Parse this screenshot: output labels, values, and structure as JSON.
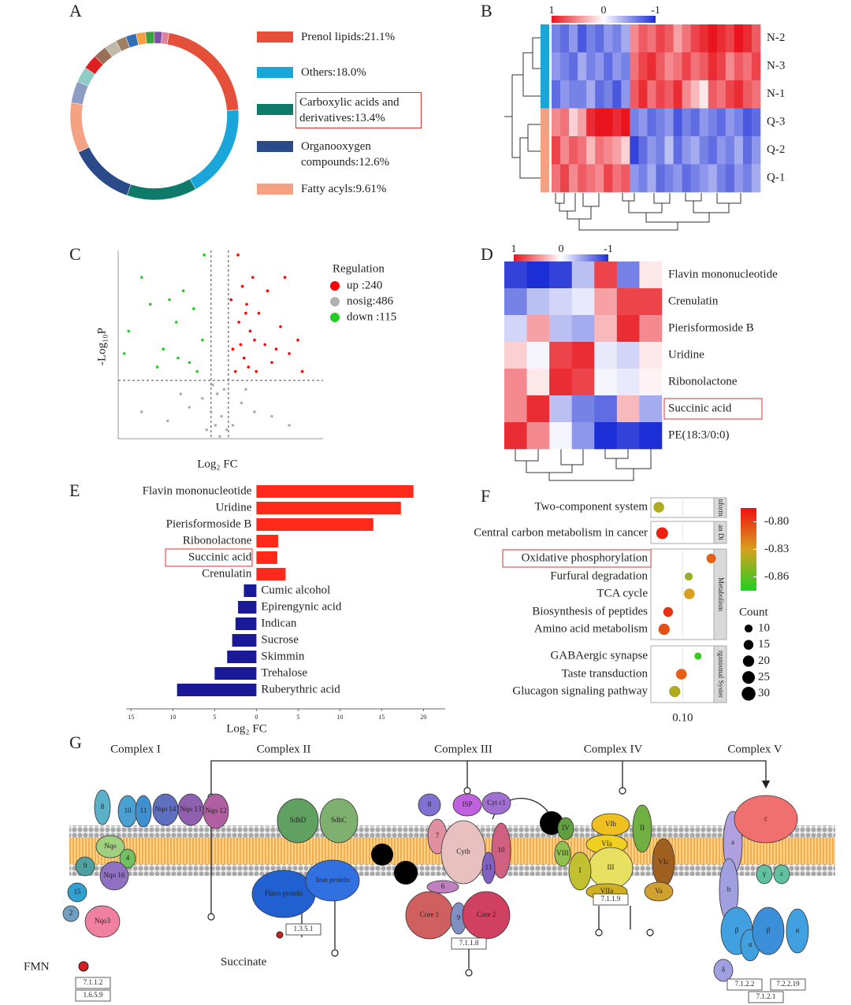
{
  "panels": [
    "A",
    "B",
    "C",
    "D",
    "E",
    "F",
    "G"
  ],
  "chart_data": [
    {
      "type": "donut",
      "categories": [
        "Prenol lipids:21.1%",
        "Others:18.0%",
        "Carboxylic acids and derivatives:13.4%",
        "Organooxygen compounds:12.6%",
        "Fatty acyls:9.61%",
        null,
        null,
        null,
        null,
        null,
        null,
        null,
        null,
        null,
        null,
        null
      ],
      "values": [
        21.1,
        18.0,
        13.4,
        12.6,
        9.61,
        4.2,
        3.0,
        2.8,
        2.6,
        2.4,
        2.0,
        2.0,
        1.8,
        1.7,
        1.5,
        1.3
      ],
      "colors": [
        "#e4503a",
        "#1aa6d8",
        "#0e7a6a",
        "#2b4a8a",
        "#f4a184",
        "#8e9cc4",
        "#8ecdc5",
        "#e02020",
        "#9a7058",
        "#c0b8a8",
        "#a08060",
        "#2f6fb6",
        "#f5a040",
        "#3aa040",
        "#8050a0",
        "#e080a0"
      ],
      "highlight_index": 2
    },
    {
      "type": "heatmap",
      "rows": [
        "N-2",
        "N-3",
        "N-1",
        "Q-3",
        "Q-2",
        "Q-1"
      ],
      "row_colors": [
        "#1aa6d8",
        "#1aa6d8",
        "#1aa6d8",
        "#f4a184",
        "#f4a184",
        "#f4a184"
      ],
      "clim": [
        -1,
        1
      ],
      "colorbar_ticks": [
        1,
        0,
        -1
      ],
      "values": [
        [
          -0.6,
          -0.7,
          -0.5,
          -0.8,
          -0.6,
          -0.7,
          -0.5,
          -0.6,
          -0.4,
          0.5,
          0.7,
          0.6,
          0.8,
          0.7,
          0.4,
          0.6,
          0.8,
          0.9,
          1.0,
          0.9,
          0.8,
          1.0,
          0.9,
          0.7
        ],
        [
          -0.5,
          -0.6,
          -0.7,
          -0.4,
          -0.6,
          -0.5,
          -0.7,
          -0.5,
          -0.6,
          0.6,
          0.8,
          0.9,
          0.7,
          0.5,
          0.6,
          0.8,
          0.6,
          0.7,
          0.9,
          0.8,
          0.5,
          0.7,
          0.6,
          0.8
        ],
        [
          -0.7,
          -0.5,
          -0.6,
          -0.6,
          -0.4,
          -0.7,
          -0.6,
          -0.8,
          -0.5,
          0.7,
          0.9,
          0.6,
          0.8,
          0.7,
          0.9,
          0.5,
          0.3,
          0.1,
          0.7,
          0.6,
          0.8,
          0.9,
          0.7,
          0.6
        ],
        [
          0.5,
          0.6,
          0.2,
          0.4,
          0.9,
          1.0,
          1.0,
          0.9,
          1.0,
          -0.6,
          -0.5,
          -0.7,
          -0.6,
          -0.5,
          -0.8,
          -0.6,
          -0.7,
          -0.5,
          -0.6,
          -0.7,
          -0.5,
          -0.6,
          -0.8,
          -0.7
        ],
        [
          0.8,
          0.5,
          0.7,
          0.6,
          0.3,
          0.6,
          0.5,
          0.4,
          0.2,
          -0.9,
          -0.7,
          -0.5,
          -0.6,
          -0.3,
          -0.7,
          -0.5,
          -0.4,
          -0.6,
          -0.7,
          -0.5,
          -0.6,
          -0.4,
          -0.7,
          -0.5
        ],
        [
          0.6,
          0.8,
          0.5,
          0.7,
          0.6,
          0.5,
          0.8,
          0.6,
          0.7,
          -0.5,
          -0.6,
          -0.4,
          -0.7,
          -0.6,
          -0.5,
          -0.7,
          -0.6,
          -0.5,
          -0.4,
          -0.6,
          -0.7,
          -0.5,
          -0.6,
          -0.4
        ]
      ]
    },
    {
      "type": "scatter",
      "xlabel": "Log₂ FC",
      "ylabel": "-Log₁₀P",
      "legend_title": "Regulation",
      "xlim": [
        -11.7,
        11.9
      ],
      "ylim": [
        0,
        4.2
      ],
      "vlines": [
        -1,
        1
      ],
      "hline": 1.3,
      "series": [
        {
          "name": "up :240",
          "color": "#ff0000",
          "x": [
            1.5,
            2.2,
            2.8,
            3.1,
            3.5,
            4.0,
            3.3,
            2.6,
            4.5,
            5.2,
            6.0,
            5.5,
            7.0,
            8.0,
            9.0,
            1.8,
            3.8,
            2.1,
            6.5,
            4.2,
            1.3,
            7.5,
            9.5,
            3.0,
            2.4
          ],
          "values": [
            2.0,
            2.6,
            1.8,
            3.0,
            2.4,
            2.2,
            1.6,
            3.4,
            2.8,
            2.1,
            1.7,
            3.3,
            2.5,
            1.9,
            2.2,
            1.5,
            3.6,
            4.1,
            2.0,
            1.5,
            3.1,
            3.6,
            1.5,
            2.8,
            2.1
          ]
        },
        {
          "name": "nosig:486",
          "color": "#b0b0b0",
          "x": [
            -1,
            -0.5,
            0.2,
            0.8,
            -2,
            -3.5,
            2.5,
            4,
            -0.3,
            0.5,
            -6,
            6,
            1.5,
            -1.5,
            3,
            -4.5,
            8,
            -9,
            0.0,
            -0.8
          ],
          "values": [
            0.6,
            0.3,
            0.5,
            0.2,
            0.9,
            0.7,
            0.8,
            0.6,
            1.0,
            1.1,
            0.4,
            0.5,
            0.3,
            0.2,
            1.1,
            1.0,
            0.3,
            0.6,
            0.05,
            1.2
          ]
        },
        {
          "name": "down :115",
          "color": "#22cc22",
          "x": [
            -2,
            -3.5,
            -5,
            -6.5,
            -8,
            -10.5,
            -4.2,
            -3,
            -7.2,
            -2.6,
            -9,
            -5.8,
            -1.8,
            -11,
            -4.8
          ],
          "values": [
            2.2,
            1.7,
            2.6,
            2.0,
            3.0,
            2.4,
            3.3,
            2.9,
            1.6,
            1.5,
            3.6,
            3.1,
            4.1,
            1.9,
            1.8
          ]
        }
      ]
    },
    {
      "type": "heatmap",
      "rows": [
        "Flavin mononucleotide",
        "Crenulatin",
        "Pierisformoside B",
        "Uridine",
        "Ribonolactone",
        "Succinic acid",
        "PE(18:3/0:0)"
      ],
      "clim": [
        -1,
        1
      ],
      "colorbar_ticks": [
        1,
        0,
        -1
      ],
      "highlight_index": 5,
      "values": [
        [
          -0.9,
          -1,
          -0.9,
          -0.3,
          0.8,
          -0.6,
          0.1
        ],
        [
          -0.6,
          -0.3,
          -0.2,
          -0.1,
          0.4,
          0.8,
          0.8
        ],
        [
          -0.2,
          0.4,
          -0.3,
          -0.4,
          0.3,
          0.9,
          0.5
        ],
        [
          0.2,
          -0.05,
          0.8,
          0.9,
          -0.1,
          -0.2,
          0.1
        ],
        [
          0.5,
          0.1,
          0.9,
          0.8,
          -0.05,
          -0.1,
          0.05
        ],
        [
          0.5,
          0.9,
          -0.3,
          -0.6,
          -0.7,
          0.3,
          -0.4
        ],
        [
          0.9,
          0.5,
          -0.05,
          -0.5,
          -1,
          -0.9,
          -1
        ]
      ]
    },
    {
      "type": "barh",
      "categories": [
        "Flavin mononucleotide",
        "Uridine",
        "Pierisformoside B",
        "Ribonolactone",
        "Succinic acid",
        "Crenulatin",
        "Cumic alcohol",
        "Epirengynic acid",
        "Indican",
        "Sucrose",
        "Skimmin",
        "Trehalose",
        "Ruberythric acid"
      ],
      "values": [
        18.8,
        17.3,
        14,
        2.6,
        2.5,
        3.5,
        -1.5,
        -2.2,
        -2.5,
        -2.9,
        -3.5,
        -5,
        -9.5
      ],
      "pos_color": "#ff2a1a",
      "neg_color": "#1a1a99",
      "highlight_index": 4,
      "xlabel": "Log₂ FC",
      "xlim": [
        -15.6,
        22.6
      ],
      "xticks": [
        {
          "value": -15,
          "label": "15"
        },
        {
          "value": -10,
          "label": "10"
        },
        {
          "value": -5,
          "label": "5"
        },
        0,
        5,
        10,
        15,
        20
      ]
    },
    {
      "type": "dot",
      "categories": [
        "Two-component system",
        "Central carbon metabolism in cancer",
        "Oxidative phosphorylation",
        "Furfural degradation",
        "TCA cycle",
        "Biosynthesis of peptides",
        "Amino acid metabolism",
        "GABAergic synapse",
        "Taste transduction",
        "Glucagon  signaling pathway"
      ],
      "facet_labels": [
        "nform",
        "an Di",
        "Metabolism",
        "rganismal Syster"
      ],
      "facet_of": [
        0,
        1,
        2,
        2,
        2,
        2,
        2,
        3,
        3,
        3
      ],
      "values": [
        0.064,
        0.069,
        0.143,
        0.109,
        0.11,
        0.078,
        0.072,
        0.123,
        0.098,
        0.088
      ],
      "color_values": [
        -0.84,
        -0.79,
        -0.81,
        -0.845,
        -0.83,
        -0.795,
        -0.805,
        -0.87,
        -0.81,
        -0.84
      ],
      "sizes": [
        18,
        22,
        14,
        10,
        18,
        15,
        20,
        8,
        18,
        20
      ],
      "xlim": [
        0.052,
        0.147
      ],
      "xticks": [
        {
          "value": 0.1,
          "label": "0.10"
        }
      ],
      "clim": [
        -0.875,
        -0.785
      ],
      "colorbar_ticks": [
        {
          "value": -0.8,
          "label": "-0.80"
        },
        {
          "value": -0.83,
          "label": "-0.83"
        },
        {
          "value": -0.86,
          "label": "-0.86"
        }
      ],
      "size_title": "Count",
      "size_ticks": [
        10,
        15,
        20,
        25,
        30
      ],
      "highlight_index": 2
    }
  ],
  "diagram": {
    "complexes": [
      "Complex I",
      "Complex II",
      "Complex III",
      "Complex IV",
      "Complex V"
    ],
    "substrates": [
      "FMN",
      "Succinate"
    ],
    "ec": [
      "7.1.1.2",
      "1.6.5.9",
      "1.3.5.1",
      "7.1.1.8",
      "7.1.1.9",
      "7.1.2.2",
      "7.2.2.19",
      "7.1.2.1"
    ],
    "subunits": [
      "8",
      "10",
      "11",
      "Nqo 14",
      "Nqo 13",
      "Nqo 12",
      "Nqo",
      "4",
      "9",
      "Nqo 16",
      "15",
      "2",
      "Nqo3",
      "SdhD",
      "SdhC",
      "Flavo protein",
      "Iron protein",
      "8",
      "ISP",
      "Cyt c1",
      "7",
      "Cytb",
      "10",
      "11",
      "6",
      "Core 1",
      "9",
      "Core 2",
      "IV",
      "VIb",
      "VIa",
      "II",
      "VIII",
      "III",
      "VIc",
      "I",
      "VIIa",
      "Va",
      "a",
      "c",
      "b",
      "γ",
      "ε",
      "β",
      "α",
      "β",
      "α",
      "δ"
    ]
  }
}
